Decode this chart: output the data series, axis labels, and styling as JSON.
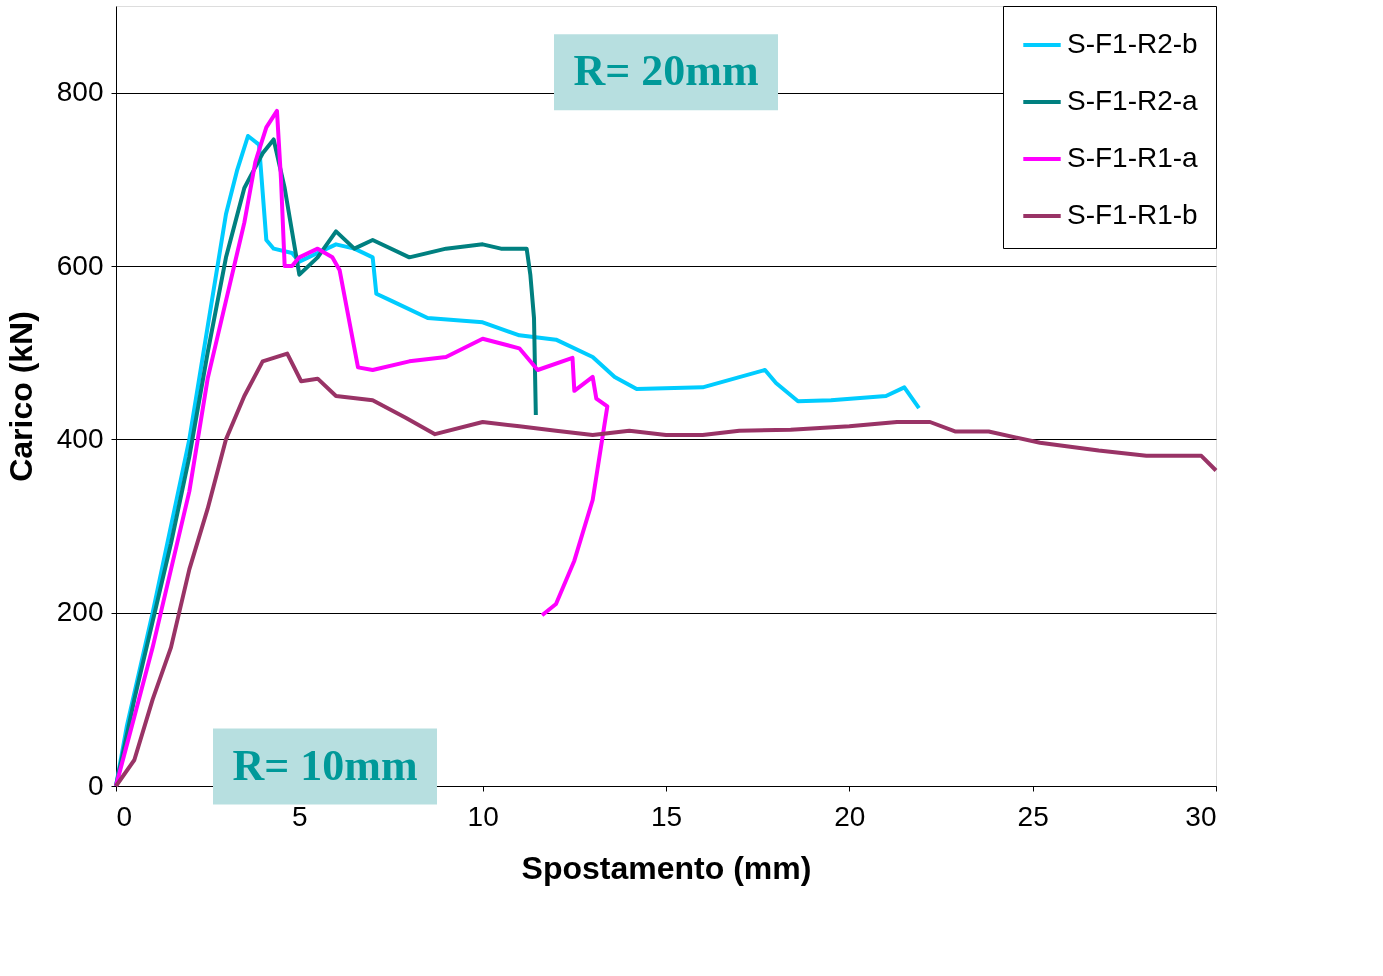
{
  "chart_data": {
    "type": "line",
    "xlabel": "Spostamento (mm)",
    "ylabel": "Carico (kN)",
    "xlim": [
      0,
      30
    ],
    "xticks": [
      0,
      5,
      10,
      15,
      20,
      25,
      30
    ],
    "ylim": [
      0,
      900
    ],
    "yticks": [
      0,
      200,
      400,
      600,
      800
    ],
    "grid": "y",
    "legend": "top right",
    "marker": "none",
    "line_style": "solid",
    "annotations": [
      "R= 20mm",
      "R= 10mm"
    ],
    "series": [
      {
        "name": "S-F1-R2-b",
        "color": "#00ccff",
        "x": [
          0,
          0.3,
          1,
          1.5,
          2,
          2.5,
          3,
          3.3,
          3.6,
          3.9,
          4.1,
          4.3,
          4.8,
          5,
          6,
          6.5,
          7,
          7.1,
          7.5,
          8.5,
          10,
          11,
          12,
          13,
          13.6,
          14.2,
          16,
          17.7,
          18,
          18.6,
          19.5,
          21,
          21.5,
          21.9
        ],
        "values": [
          0,
          70,
          200,
          300,
          400,
          530,
          660,
          710,
          750,
          740,
          630,
          620,
          615,
          605,
          625,
          620,
          610,
          568,
          560,
          540,
          535,
          520,
          515,
          495,
          472,
          458,
          460,
          480,
          465,
          444,
          445,
          450,
          460,
          436
        ]
      },
      {
        "name": "S-F1-R2-a",
        "color": "#008080",
        "x": [
          0,
          0.5,
          1,
          1.5,
          2,
          2.5,
          3,
          3.5,
          4,
          4.3,
          4.6,
          5,
          5.5,
          6,
          6.5,
          7,
          8,
          9,
          10,
          10.5,
          11.2,
          11.3,
          11.4,
          11.45
        ],
        "values": [
          0,
          100,
          190,
          280,
          380,
          500,
          610,
          690,
          730,
          746,
          690,
          590,
          610,
          640,
          620,
          630,
          610,
          620,
          625,
          620,
          620,
          590,
          540,
          428
        ]
      },
      {
        "name": "S-F1-R1-a",
        "color": "#ff00ff",
        "x": [
          0,
          0.5,
          1,
          1.5,
          2,
          2.5,
          3,
          3.5,
          3.8,
          4.1,
          4.39,
          4.5,
          4.6,
          4.8,
          5,
          5.5,
          5.9,
          6.1,
          6.6,
          7,
          8,
          9,
          10,
          11,
          11.5,
          12.45,
          12.5,
          13,
          13.1,
          13.4,
          13,
          12.5,
          12,
          11.62
        ],
        "values": [
          0,
          80,
          160,
          250,
          340,
          470,
          560,
          650,
          720,
          760,
          779,
          700,
          600,
          600,
          610,
          620,
          610,
          595,
          483,
          480,
          490,
          495,
          516,
          505,
          480,
          494,
          456,
          472,
          447,
          438,
          330,
          260,
          210,
          197
        ]
      },
      {
        "name": "S-F1-R1-b",
        "color": "#993366",
        "x": [
          0,
          0.5,
          1,
          1.5,
          2,
          2.5,
          3,
          3.5,
          4,
          4.67,
          5.05,
          5.5,
          6,
          7,
          7.9,
          8.7,
          10,
          11,
          12,
          13,
          14,
          15,
          16,
          17,
          18.4,
          20,
          21.3,
          22.2,
          22.9,
          23.8,
          25.2,
          26.8,
          28.1,
          29.6,
          30
        ],
        "values": [
          0,
          30,
          100,
          160,
          250,
          320,
          400,
          450,
          490,
          499,
          467,
          470,
          450,
          445,
          425,
          406,
          420,
          415,
          410,
          405,
          410,
          405,
          405,
          410,
          411,
          415,
          420,
          420,
          409,
          409,
          396,
          387,
          381,
          381,
          364
        ]
      }
    ]
  }
}
